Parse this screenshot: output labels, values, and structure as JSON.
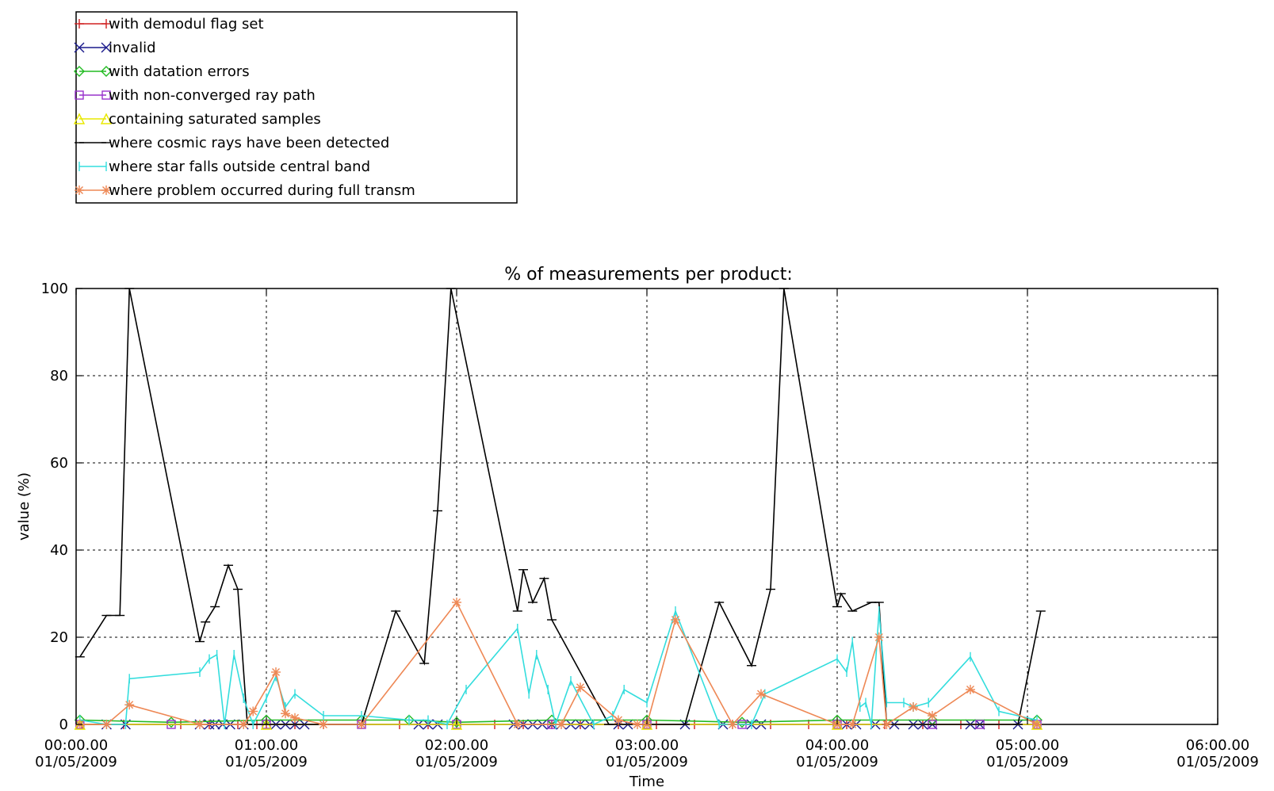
{
  "chart_data": {
    "type": "line",
    "title": "% of measurements per product:",
    "xlabel": "Time",
    "ylabel": "value (%)",
    "ylim": [
      0,
      100
    ],
    "xlim_hours": [
      0,
      6
    ],
    "yticks": [
      "0",
      "20",
      "40",
      "60",
      "80",
      "100"
    ],
    "xticks": [
      {
        "time": "00:00.00",
        "date": "01/05/2009"
      },
      {
        "time": "01:00.00",
        "date": "01/05/2009"
      },
      {
        "time": "02:00.00",
        "date": "01/05/2009"
      },
      {
        "time": "03:00.00",
        "date": "01/05/2009"
      },
      {
        "time": "04:00.00",
        "date": "01/05/2009"
      },
      {
        "time": "05:00.00",
        "date": "01/05/2009"
      },
      {
        "time": "06:00.00",
        "date": "01/05/2009"
      }
    ],
    "grid": true,
    "legend_position": "top-left, outside plot",
    "series": [
      {
        "name": "with demodul flag set",
        "color": "#d02020",
        "marker": "plus",
        "x": [
          0.03,
          0.25,
          0.55,
          0.7,
          0.85,
          0.95,
          1.0,
          1.15,
          1.3,
          1.5,
          1.7,
          1.85,
          2.0,
          2.2,
          2.35,
          2.5,
          2.65,
          2.85,
          3.05,
          3.25,
          3.45,
          3.65,
          3.85,
          4.05,
          4.25,
          4.45,
          4.65,
          4.85,
          5.05
        ],
        "y": [
          0,
          0,
          0,
          0,
          0,
          0,
          0,
          0,
          0,
          0,
          0,
          0,
          0,
          0,
          0,
          0,
          0,
          0,
          0,
          0,
          0,
          0,
          0,
          0,
          0,
          0,
          0,
          0,
          0
        ]
      },
      {
        "name": "invalid",
        "color": "#1a1a8c",
        "marker": "x",
        "x": [
          0.02,
          0.16,
          0.26,
          0.65,
          0.7,
          0.73,
          0.77,
          0.81,
          0.88,
          1.05,
          1.1,
          1.15,
          1.2,
          1.8,
          1.85,
          1.9,
          2.3,
          2.35,
          2.4,
          2.45,
          2.5,
          2.55,
          2.6,
          2.65,
          2.7,
          2.85,
          2.9,
          3.0,
          3.2,
          3.4,
          3.55,
          3.6,
          4.0,
          4.05,
          4.1,
          4.2,
          4.3,
          4.4,
          4.45,
          4.5,
          4.7,
          4.75,
          4.95,
          5.05
        ],
        "y": [
          0,
          0,
          0,
          0,
          0,
          0,
          0,
          0,
          0,
          0,
          0,
          0,
          0,
          0,
          0,
          0,
          0,
          0,
          0,
          0,
          0,
          0,
          0,
          0,
          0,
          0,
          0,
          0,
          0,
          0,
          0,
          0,
          0,
          0,
          0,
          0,
          0,
          0,
          0,
          0,
          0,
          0,
          0,
          0
        ]
      },
      {
        "name": "with datation errors",
        "color": "#22bb22",
        "marker": "diamond",
        "x": [
          0.02,
          0.5,
          1.0,
          1.5,
          1.75,
          2.0,
          2.5,
          3.0,
          3.5,
          4.0,
          4.5,
          5.05
        ],
        "y": [
          1,
          0.5,
          1,
          1,
          1,
          0.5,
          1,
          1,
          0.5,
          1,
          1,
          1
        ]
      },
      {
        "name": "with non-converged ray path",
        "color": "#9933cc",
        "marker": "square",
        "x": [
          0.02,
          0.5,
          1.0,
          1.5,
          2.0,
          2.5,
          3.0,
          3.5,
          4.0,
          4.5,
          4.75,
          5.05
        ],
        "y": [
          0,
          0,
          0,
          0,
          0,
          0,
          0,
          0,
          0,
          0,
          0,
          0
        ]
      },
      {
        "name": "containing saturated samples",
        "color": "#e8e800",
        "marker": "triangle",
        "x": [
          0.02,
          1.0,
          2.0,
          3.0,
          4.0,
          5.05
        ],
        "y": [
          0,
          0,
          0,
          0,
          0,
          0
        ]
      },
      {
        "name": "where cosmic rays have been detected",
        "color": "#000000",
        "marker": "hline",
        "x": [
          0.02,
          0.16,
          0.23,
          0.28,
          0.65,
          0.68,
          0.73,
          0.8,
          0.85,
          0.9,
          1.5,
          1.68,
          1.83,
          1.9,
          1.97,
          2.32,
          2.35,
          2.4,
          2.46,
          2.5,
          2.8,
          3.0,
          3.2,
          3.38,
          3.55,
          3.65,
          3.72,
          4.0,
          4.02,
          4.08,
          4.18,
          4.22,
          4.26,
          4.95,
          5.07
        ],
        "y": [
          15.5,
          25,
          25,
          100,
          19,
          23.5,
          27,
          36.5,
          31,
          0,
          0,
          26,
          14,
          49,
          100,
          26,
          35.5,
          28,
          33.5,
          24,
          0,
          0,
          0,
          28,
          13.5,
          31,
          100,
          27,
          30,
          26,
          28,
          28,
          0,
          0,
          26
        ]
      },
      {
        "name": "where star falls outside central band",
        "color": "#33dddd",
        "marker": "vline",
        "x": [
          0.02,
          0.16,
          0.26,
          0.28,
          0.65,
          0.7,
          0.74,
          0.78,
          0.83,
          0.88,
          0.93,
          1.0,
          1.05,
          1.1,
          1.15,
          1.3,
          1.5,
          1.75,
          1.85,
          1.95,
          2.05,
          2.32,
          2.38,
          2.42,
          2.48,
          2.52,
          2.6,
          2.72,
          2.82,
          2.88,
          3.0,
          3.15,
          3.38,
          3.55,
          3.62,
          4.0,
          4.05,
          4.08,
          4.12,
          4.15,
          4.18,
          4.22,
          4.26,
          4.35,
          4.4,
          4.48,
          4.7,
          4.85,
          5.05
        ],
        "y": [
          1,
          0,
          0,
          10.5,
          12,
          15,
          16,
          0,
          16,
          6,
          0,
          6,
          11,
          4,
          7,
          2,
          2,
          1,
          1,
          0,
          8,
          22,
          7,
          16,
          8,
          0,
          10,
          0,
          2,
          8,
          5,
          26,
          0,
          0,
          7,
          15,
          12,
          19,
          4,
          5,
          0,
          26,
          5,
          5,
          4,
          5,
          15.5,
          3,
          1
        ]
      },
      {
        "name": "where problem occurred during full transm",
        "color": "#ee8855",
        "marker": "asterisk",
        "x": [
          0.02,
          0.16,
          0.28,
          0.65,
          0.88,
          0.93,
          1.05,
          1.1,
          1.15,
          1.3,
          1.5,
          2.0,
          2.32,
          2.55,
          2.65,
          2.85,
          2.95,
          3.0,
          3.15,
          3.45,
          3.6,
          4.0,
          4.08,
          4.22,
          4.26,
          4.4,
          4.5,
          4.7,
          5.05
        ],
        "y": [
          0,
          0,
          4.5,
          0,
          0,
          3,
          12,
          2.5,
          1.5,
          0,
          0,
          28,
          0,
          0,
          8.5,
          1,
          0,
          0,
          24,
          0,
          7,
          0,
          0,
          20,
          0,
          4,
          2,
          8,
          0
        ]
      }
    ]
  }
}
